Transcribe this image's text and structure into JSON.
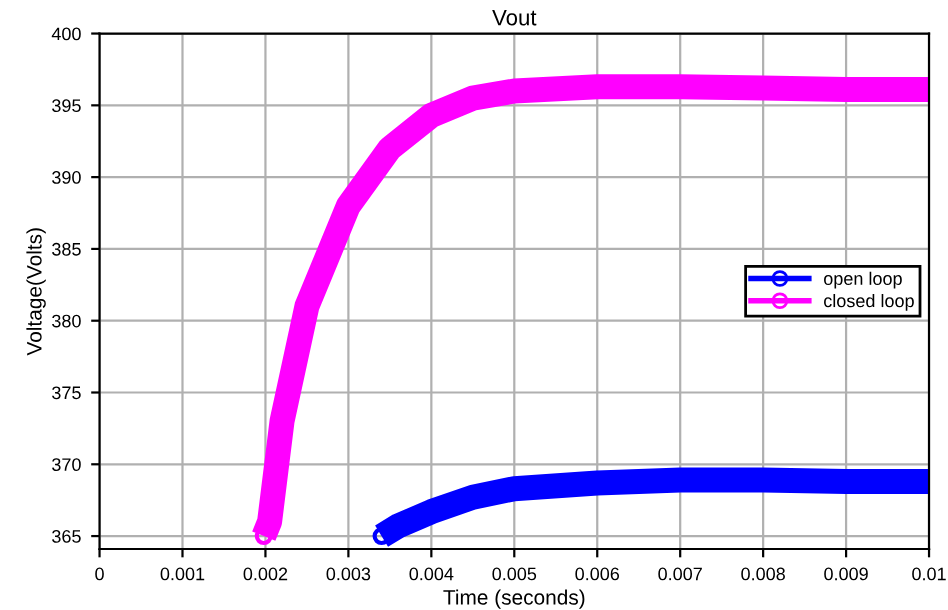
{
  "chart_data": {
    "type": "line",
    "title": "Vout",
    "xlabel": "Time (seconds)",
    "ylabel": "Voltage(Volts)",
    "xlim": [
      0,
      0.01
    ],
    "ylim": [
      364.1,
      400
    ],
    "xticks": [
      0,
      0.001,
      0.002,
      0.003,
      0.004,
      0.005,
      0.006,
      0.007,
      0.008,
      0.009,
      0.01
    ],
    "yticks": [
      365,
      370,
      375,
      380,
      385,
      390,
      395,
      400
    ],
    "grid": true,
    "legend": "right",
    "marker": "circle",
    "line_style": "solid",
    "series": [
      {
        "name": "open loop",
        "color": "#0000ff",
        "x": [
          0.0034,
          0.0036,
          0.004,
          0.0045,
          0.005,
          0.006,
          0.007,
          0.008,
          0.009,
          0.01
        ],
        "values": [
          365,
          365.7,
          366.7,
          367.7,
          368.3,
          368.7,
          368.9,
          368.9,
          368.8,
          368.8
        ]
      },
      {
        "name": "closed loop",
        "color": "#ff00ff",
        "x": [
          0.00198,
          0.00205,
          0.0022,
          0.0025,
          0.003,
          0.0035,
          0.004,
          0.0045,
          0.005,
          0.006,
          0.007,
          0.008,
          0.009,
          0.01
        ],
        "values": [
          365,
          366,
          373,
          381,
          388,
          392,
          394.3,
          395.5,
          396,
          396.3,
          396.3,
          396.2,
          396.1,
          396.1
        ]
      }
    ]
  }
}
